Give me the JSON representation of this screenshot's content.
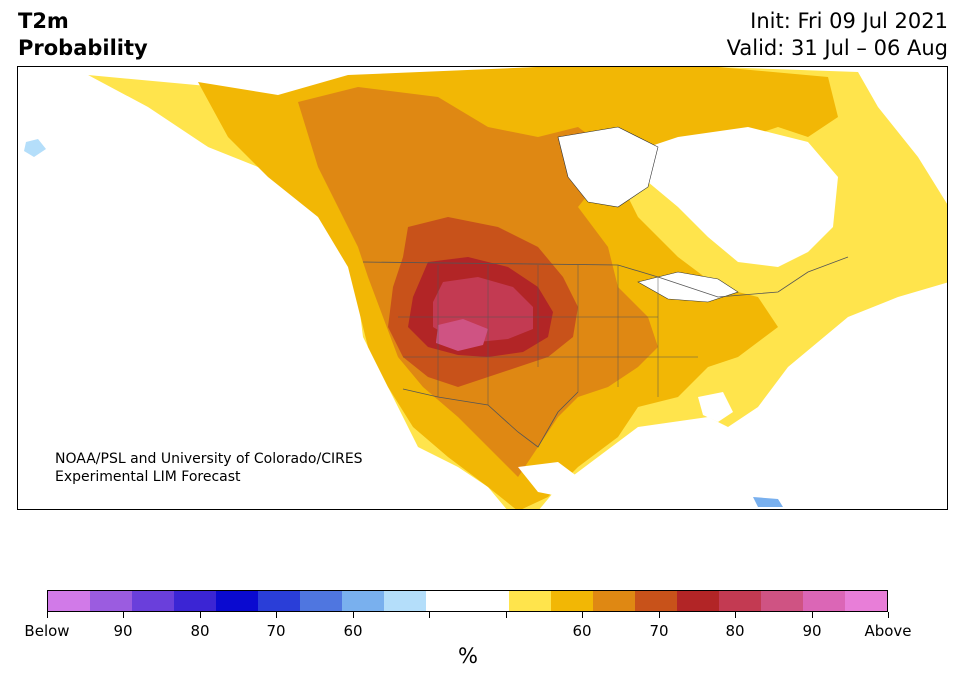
{
  "header": {
    "variable": "T2m",
    "product": "Probability",
    "init": "Init: Fri 09 Jul 2021",
    "valid": "Valid: 31 Jul – 06 Aug"
  },
  "credit": {
    "line1": "NOAA/PSL and University of Colorado/CIRES",
    "line2": "Experimental LIM Forecast"
  },
  "colorbar": {
    "unit": "%",
    "colors": [
      "#d17ae8",
      "#9b5ce0",
      "#6a3fdb",
      "#3b25d4",
      "#0a0ad0",
      "#2a3ed8",
      "#4f76e0",
      "#79b0ee",
      "#b4defa",
      "#ffffff",
      "#ffffff",
      "#ffe44c",
      "#f2b705",
      "#df8813",
      "#c8521a",
      "#b22526",
      "#c33a52",
      "#cf5383",
      "#db66b6",
      "#e87ed8"
    ],
    "labels": [
      "Below",
      "90",
      "80",
      "70",
      "60",
      "",
      "",
      "60",
      "70",
      "80",
      "90",
      "Above"
    ]
  },
  "map_regions": {
    "near_normal_color": "#ffffff",
    "above_colors": {
      "p55": "#ffe44c",
      "p60": "#f2b705",
      "p65": "#df8813",
      "p70": "#c8521a",
      "p75": "#b22526",
      "p80": "#c33a52",
      "p85": "#cf5383"
    },
    "below_color": "#79b0ee"
  }
}
